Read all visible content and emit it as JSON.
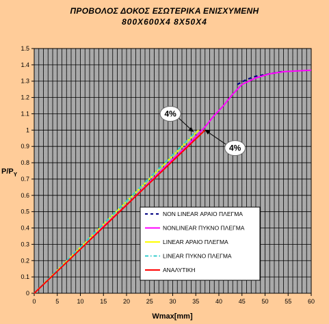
{
  "chart_data": {
    "type": "line",
    "title": "ΠΡΟΒΟΛΟΣ ΔΟΚΟΣ ΕΣΩΤΕΡΙΚΑ ΕΝΙΣΧΥΜΕΝΗ",
    "subtitle": "800X600X4  8X50X4",
    "xlabel": "Wmax[mm]",
    "ylabel": "P/PY",
    "xlim": [
      0,
      60
    ],
    "ylim": [
      0,
      1.5
    ],
    "x_ticks": [
      0,
      5,
      10,
      15,
      20,
      25,
      30,
      35,
      40,
      45,
      50,
      55,
      60
    ],
    "y_ticks": [
      0,
      0.1,
      0.2,
      0.3,
      0.4,
      0.5,
      0.6,
      0.7,
      0.8,
      0.9,
      1,
      1.1,
      1.2,
      1.3,
      1.4,
      1.5
    ],
    "grid": true,
    "legend_position": "bottom-right inside plot",
    "series": [
      {
        "name": "NON LINEAR ΑΡΑΙΟ ΠΛΕΓΜΑ",
        "color": "#000080",
        "style": "dashed",
        "points": [
          [
            44,
            1.28
          ],
          [
            46,
            1.31
          ],
          [
            48,
            1.33
          ],
          [
            50,
            1.34
          ],
          [
            52,
            1.35
          ],
          [
            54,
            1.36
          ]
        ]
      },
      {
        "name": "NONLINEAR ΠΥΚΝΟ ΠΛΕΓΜΑ",
        "color": "#FF00FF",
        "style": "solid",
        "points": [
          [
            0,
            0
          ],
          [
            5,
            0.14
          ],
          [
            10,
            0.28
          ],
          [
            15,
            0.41
          ],
          [
            20,
            0.54
          ],
          [
            25,
            0.68
          ],
          [
            30,
            0.82
          ],
          [
            33,
            0.9
          ],
          [
            35,
            0.96
          ],
          [
            37,
            1.02
          ],
          [
            39,
            1.09
          ],
          [
            41,
            1.15
          ],
          [
            43,
            1.22
          ],
          [
            45,
            1.28
          ],
          [
            48,
            1.32
          ],
          [
            51,
            1.345
          ],
          [
            54,
            1.358
          ],
          [
            57,
            1.363
          ],
          [
            60,
            1.367
          ]
        ]
      },
      {
        "name": "LINEAR ΑΡΑΙΟ ΠΛΕΓΜΑ",
        "color": "#FFFF00",
        "style": "solid",
        "points": [
          [
            0,
            0
          ],
          [
            35.6,
            1.0
          ]
        ]
      },
      {
        "name": "LINEAR ΠΥΚΝΟ ΠΛΕΓΜΑ",
        "color": "#33CCCC",
        "style": "dashdot",
        "points": [
          [
            0,
            0
          ],
          [
            35.4,
            1.0
          ]
        ]
      },
      {
        "name": "ΑΝΑΛΥΤΙΚΗ",
        "color": "#FF0000",
        "style": "solid",
        "points": [
          [
            0,
            0
          ],
          [
            37,
            1.0
          ]
        ]
      }
    ],
    "annotations": [
      {
        "text": "4%",
        "x": 29.5,
        "y": 1.1,
        "arrow_to": [
          34.5,
          0.99
        ]
      },
      {
        "text": "4%",
        "x": 43.5,
        "y": 0.89,
        "arrow_to": [
          37,
          1.0
        ]
      }
    ]
  }
}
